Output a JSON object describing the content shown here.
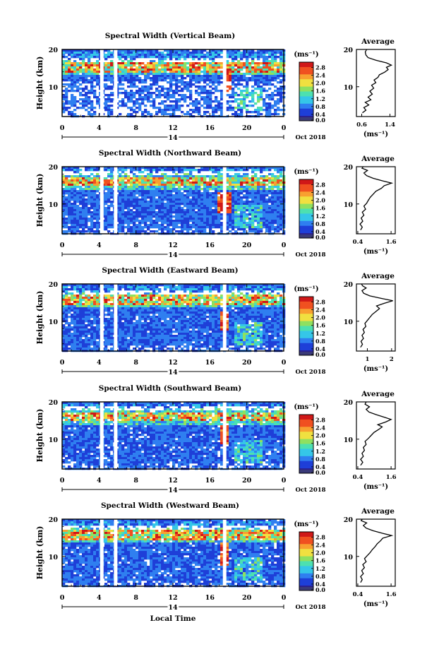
{
  "chart_data": [
    {
      "type": "heatmap",
      "title": "Spectral Width (Vertical Beam)",
      "ylabel": "Height (km)",
      "x_ticks": [
        "0",
        "4",
        "8",
        "12",
        "16",
        "20",
        "0"
      ],
      "y_ticks": [
        "20",
        "10"
      ],
      "date_center": "14",
      "date_label": "Oct 2018",
      "xlim": [
        0,
        24
      ],
      "ylim": [
        2,
        20
      ],
      "gaps_hours": [
        4.3,
        5.8,
        17.6
      ],
      "colorbar": {
        "unit": "(ms⁻¹)",
        "ticks": [
          "2.8",
          "2.4",
          "2.0",
          "1.6",
          "1.2",
          "0.8",
          "0.4",
          "0.0"
        ],
        "range": [
          0,
          3.0
        ]
      },
      "features": {
        "layer_km": 15.5,
        "strong_region": [
          17.2,
          18.2,
          9,
          15
        ],
        "lower_cutoff_km": 7
      },
      "profile": {
        "title": "Average",
        "xlabel": "(ms⁻¹)",
        "x_ticks": [
          "0.6",
          "1.4"
        ],
        "x_tick_values": [
          0.6,
          1.4
        ],
        "xlim": [
          0.45,
          1.55
        ],
        "y_ticks": [
          "20",
          "10"
        ],
        "points": [
          [
            0.62,
            3
          ],
          [
            0.72,
            3.7
          ],
          [
            0.66,
            4.4
          ],
          [
            0.8,
            5.1
          ],
          [
            0.7,
            5.8
          ],
          [
            0.86,
            6.5
          ],
          [
            0.78,
            7.2
          ],
          [
            0.9,
            8
          ],
          [
            0.83,
            8.8
          ],
          [
            0.94,
            9.6
          ],
          [
            0.88,
            10.4
          ],
          [
            1.0,
            11.1
          ],
          [
            0.95,
            11.8
          ],
          [
            1.06,
            12.5
          ],
          [
            1.1,
            13.2
          ],
          [
            1.25,
            13.9
          ],
          [
            1.35,
            14.6
          ],
          [
            1.3,
            15.2
          ],
          [
            1.44,
            15.8
          ],
          [
            1.3,
            16.4
          ],
          [
            1.0,
            17.1
          ],
          [
            0.78,
            17.8
          ],
          [
            0.72,
            18.5
          ],
          [
            0.7,
            19.3
          ],
          [
            0.74,
            20
          ]
        ]
      }
    },
    {
      "type": "heatmap",
      "title": "Spectral Width (Northward Beam)",
      "ylabel": "Height (km)",
      "x_ticks": [
        "0",
        "4",
        "8",
        "12",
        "16",
        "20",
        "0"
      ],
      "y_ticks": [
        "20",
        "10"
      ],
      "date_center": "14",
      "date_label": "Oct 2018",
      "xlim": [
        0,
        24
      ],
      "ylim": [
        2,
        20
      ],
      "gaps_hours": [
        4.3,
        5.8,
        17.6
      ],
      "colorbar": {
        "unit": "(ms⁻¹)",
        "ticks": [
          "2.8",
          "2.4",
          "2.0",
          "1.6",
          "1.2",
          "0.8",
          "0.4",
          "0.0"
        ],
        "range": [
          0,
          3.0
        ]
      },
      "features": {
        "layer_km": 16.5,
        "strong_region": [
          16.8,
          18.2,
          8,
          13.5
        ],
        "lower_cutoff_km": 2
      },
      "profile": {
        "title": "Average",
        "xlabel": "(ms⁻¹)",
        "x_ticks": [
          "0.4",
          "1.6"
        ],
        "x_tick_values": [
          0.4,
          1.6
        ],
        "xlim": [
          0.35,
          1.75
        ],
        "y_ticks": [
          "20",
          "10"
        ],
        "points": [
          [
            0.5,
            3
          ],
          [
            0.56,
            3.8
          ],
          [
            0.48,
            4.6
          ],
          [
            0.58,
            5.4
          ],
          [
            0.52,
            6.2
          ],
          [
            0.62,
            7
          ],
          [
            0.56,
            7.8
          ],
          [
            0.68,
            8.6
          ],
          [
            0.62,
            9.4
          ],
          [
            0.72,
            10.2
          ],
          [
            0.78,
            11
          ],
          [
            0.85,
            11.8
          ],
          [
            0.95,
            12.6
          ],
          [
            1.05,
            13.4
          ],
          [
            1.25,
            14.2
          ],
          [
            1.35,
            14.9
          ],
          [
            1.62,
            15.6
          ],
          [
            1.3,
            16.2
          ],
          [
            0.95,
            16.9
          ],
          [
            0.72,
            17.6
          ],
          [
            0.62,
            18.3
          ],
          [
            0.75,
            19
          ],
          [
            0.55,
            19.6
          ],
          [
            0.6,
            20
          ]
        ]
      }
    },
    {
      "type": "heatmap",
      "title": "Spectral Width (Eastward Beam)",
      "ylabel": "Height (km)",
      "x_ticks": [
        "0",
        "4",
        "8",
        "12",
        "16",
        "20",
        "0"
      ],
      "y_ticks": [
        "20",
        "10"
      ],
      "date_center": "14",
      "date_label": "Oct 2018",
      "xlim": [
        0,
        24
      ],
      "ylim": [
        2,
        20
      ],
      "gaps_hours": [
        4.3,
        5.8,
        17.6
      ],
      "colorbar": {
        "unit": "(ms⁻¹)",
        "ticks": [
          "2.8",
          "2.4",
          "2.0",
          "1.6",
          "1.2",
          "0.8",
          "0.4",
          "0.0"
        ],
        "range": [
          0,
          3.0
        ]
      },
      "features": {
        "layer_km": 16.0,
        "strong_region": [
          17.0,
          18.0,
          8,
          13
        ],
        "lower_cutoff_km": 2
      },
      "profile": {
        "title": "Average",
        "xlabel": "(ms⁻¹)",
        "x_ticks": [
          "1",
          "2"
        ],
        "x_tick_values": [
          1,
          2
        ],
        "xlim": [
          0.55,
          2.15
        ],
        "y_ticks": [
          "20",
          "10"
        ],
        "points": [
          [
            0.72,
            3
          ],
          [
            0.8,
            3.8
          ],
          [
            0.74,
            4.6
          ],
          [
            0.84,
            5.4
          ],
          [
            0.78,
            6.2
          ],
          [
            0.88,
            7
          ],
          [
            0.82,
            7.8
          ],
          [
            0.94,
            8.6
          ],
          [
            0.9,
            9.4
          ],
          [
            1.0,
            10.2
          ],
          [
            1.1,
            11
          ],
          [
            1.2,
            11.8
          ],
          [
            1.35,
            12.6
          ],
          [
            1.5,
            13.4
          ],
          [
            1.38,
            14.1
          ],
          [
            1.7,
            14.8
          ],
          [
            2.05,
            15.5
          ],
          [
            1.6,
            16.1
          ],
          [
            1.1,
            16.8
          ],
          [
            0.85,
            17.5
          ],
          [
            0.78,
            18.2
          ],
          [
            0.95,
            18.9
          ],
          [
            0.8,
            19.5
          ],
          [
            0.76,
            20
          ]
        ]
      }
    },
    {
      "type": "heatmap",
      "title": "Spectral Width (Southward Beam)",
      "ylabel": "Height (km)",
      "x_ticks": [
        "0",
        "4",
        "8",
        "12",
        "16",
        "20",
        "0"
      ],
      "y_ticks": [
        "20",
        "10"
      ],
      "date_center": "14",
      "date_label": "Oct 2018",
      "xlim": [
        0,
        24
      ],
      "ylim": [
        2,
        20
      ],
      "gaps_hours": [
        4.3,
        5.8,
        17.6
      ],
      "colorbar": {
        "unit": "(ms⁻¹)",
        "ticks": [
          "2.8",
          "2.4",
          "2.0",
          "1.6",
          "1.2",
          "0.8",
          "0.4",
          "0.0"
        ],
        "range": [
          0,
          3.0
        ]
      },
      "features": {
        "layer_km": 16.5,
        "strong_region": [
          17.0,
          18.0,
          9,
          14
        ],
        "lower_cutoff_km": 2
      },
      "profile": {
        "title": "Average",
        "xlabel": "(ms⁻¹)",
        "x_ticks": [
          "0.4",
          "1.6"
        ],
        "x_tick_values": [
          0.4,
          1.6
        ],
        "xlim": [
          0.35,
          1.75
        ],
        "y_ticks": [
          "20",
          "10"
        ],
        "points": [
          [
            0.5,
            3
          ],
          [
            0.58,
            3.8
          ],
          [
            0.5,
            4.6
          ],
          [
            0.6,
            5.4
          ],
          [
            0.55,
            6.2
          ],
          [
            0.64,
            7
          ],
          [
            0.6,
            7.8
          ],
          [
            0.7,
            8.6
          ],
          [
            0.66,
            9.4
          ],
          [
            0.78,
            10.2
          ],
          [
            0.88,
            11
          ],
          [
            0.98,
            11.8
          ],
          [
            1.15,
            12.6
          ],
          [
            1.28,
            13.3
          ],
          [
            1.12,
            13.9
          ],
          [
            1.4,
            14.6
          ],
          [
            1.6,
            15.3
          ],
          [
            1.35,
            15.9
          ],
          [
            1.05,
            16.6
          ],
          [
            0.8,
            17.3
          ],
          [
            0.7,
            18
          ],
          [
            0.82,
            18.7
          ],
          [
            0.66,
            19.4
          ],
          [
            0.7,
            20
          ]
        ]
      }
    },
    {
      "type": "heatmap",
      "title": "Spectral Width (Westward Beam)",
      "ylabel": "Height (km)",
      "x_ticks": [
        "0",
        "4",
        "8",
        "12",
        "16",
        "20",
        "0"
      ],
      "y_ticks": [
        "20",
        "10"
      ],
      "date_center": "14",
      "date_label": "Oct 2018",
      "xlim": [
        0,
        24
      ],
      "ylim": [
        2,
        20
      ],
      "gaps_hours": [
        4.3,
        5.8,
        17.6
      ],
      "colorbar": {
        "unit": "(ms⁻¹)",
        "ticks": [
          "2.8",
          "2.4",
          "2.0",
          "1.6",
          "1.2",
          "0.8",
          "0.4",
          "0.0"
        ],
        "range": [
          0,
          3.0
        ]
      },
      "features": {
        "layer_km": 16.0,
        "strong_region": [
          17.0,
          18.0,
          8,
          14
        ],
        "lower_cutoff_km": 2
      },
      "profile": {
        "title": "Average",
        "xlabel": "(ms⁻¹)",
        "x_ticks": [
          "0.4",
          "1.6"
        ],
        "x_tick_values": [
          0.4,
          1.6
        ],
        "xlim": [
          0.35,
          1.75
        ],
        "y_ticks": [
          "20",
          "10"
        ],
        "points": [
          [
            0.5,
            3
          ],
          [
            0.56,
            3.8
          ],
          [
            0.5,
            4.6
          ],
          [
            0.6,
            5.4
          ],
          [
            0.54,
            6.2
          ],
          [
            0.64,
            7
          ],
          [
            0.58,
            7.8
          ],
          [
            0.7,
            8.6
          ],
          [
            0.64,
            9.4
          ],
          [
            0.74,
            10.2
          ],
          [
            0.84,
            11
          ],
          [
            0.92,
            11.8
          ],
          [
            1.02,
            12.6
          ],
          [
            1.1,
            13.4
          ],
          [
            1.22,
            14.2
          ],
          [
            1.3,
            14.9
          ],
          [
            1.62,
            15.6
          ],
          [
            1.3,
            16.2
          ],
          [
            0.95,
            16.9
          ],
          [
            0.7,
            17.6
          ],
          [
            0.6,
            18.3
          ],
          [
            0.72,
            19
          ],
          [
            0.52,
            19.6
          ],
          [
            0.56,
            20
          ]
        ]
      }
    }
  ],
  "footer": {
    "xlabel": "Local Time"
  },
  "colors": {
    "scale": [
      "#2a1f8f",
      "#1e3fd8",
      "#2f7ff0",
      "#35c6e8",
      "#4de0b0",
      "#8fe060",
      "#f0e040",
      "#f8a030",
      "#f05020",
      "#d01818"
    ],
    "low_band": "#3a3a78",
    "mid_band": "#8a8ab8"
  }
}
